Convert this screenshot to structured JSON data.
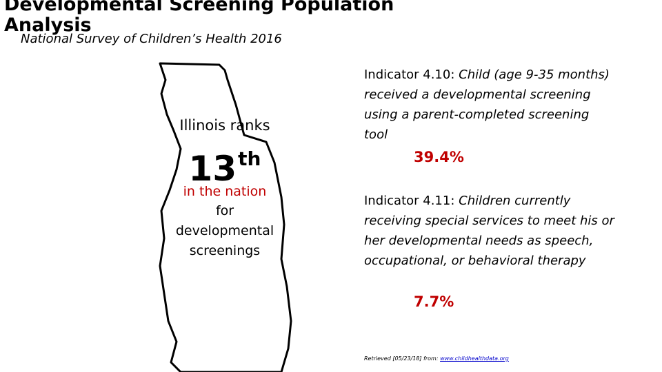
{
  "header": {
    "title": "Developmental Screening Population Analysis",
    "subtitle": "National Survey of Children’s Health 2016"
  },
  "rank": {
    "label": "Illinois ranks",
    "number": "13",
    "suffix": "th",
    "nation_text": "in the nation",
    "for_text": "for",
    "topic_text": "developmental",
    "topic_text2": "screenings"
  },
  "indicators": [
    {
      "name": "Indicator 4.10:",
      "description": "Child (age 9-35 months) received a developmental screening using a parent-completed screening tool",
      "value": "39.4%"
    },
    {
      "name": "Indicator 4.11:",
      "description": "Children currently receiving special services to meet his or her developmental needs as speech, occupational, or behavioral therapy",
      "value": "7.7%"
    }
  ],
  "source": {
    "prefix": "Retrieved [05/23/18] from: ",
    "link": "www.childhealthdata.org"
  },
  "colors": {
    "accent": "#c00000",
    "link": "#0000cc"
  }
}
